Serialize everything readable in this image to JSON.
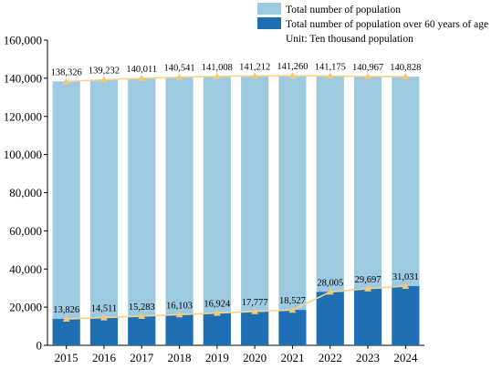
{
  "chart_data": {
    "type": "bar",
    "categories": [
      "2015",
      "2016",
      "2017",
      "2018",
      "2019",
      "2020",
      "2021",
      "2022",
      "2023",
      "2024"
    ],
    "series": [
      {
        "name": "Total number of population",
        "values": [
          138326,
          139232,
          140011,
          140541,
          141008,
          141212,
          141260,
          141175,
          140967,
          140828
        ],
        "labels": [
          "138,326",
          "139,232",
          "140,011",
          "140,541",
          "141,008",
          "141,212",
          "141,260",
          "141,175",
          "140,967",
          "140,828"
        ],
        "color": "#9ecae1"
      },
      {
        "name": "Total number of population over 60 years of age",
        "values": [
          13826,
          14511,
          15283,
          16103,
          16924,
          17777,
          18527,
          28005,
          29697,
          31031
        ],
        "labels": [
          "13,826",
          "14,511",
          "15,283",
          "16,103",
          "16,924",
          "17,777",
          "18,527",
          "28,005",
          "29,697",
          "31,031"
        ],
        "color": "#1f6fb4"
      }
    ],
    "overlay_line": {
      "color": "#f7d38a",
      "marker": "triangle",
      "marker_color": "#f2c97a"
    },
    "unit_note": "Unit: Ten thousand population",
    "ylim": [
      0,
      160000
    ],
    "yticks": [
      0,
      20000,
      40000,
      60000,
      80000,
      100000,
      120000,
      140000,
      160000
    ],
    "ytick_labels": [
      "0",
      "20,000",
      "40,000",
      "60,000",
      "80,000",
      "100,000",
      "120,000",
      "140,000",
      "160,000"
    ],
    "legend_position": "top-right",
    "grid": false
  }
}
